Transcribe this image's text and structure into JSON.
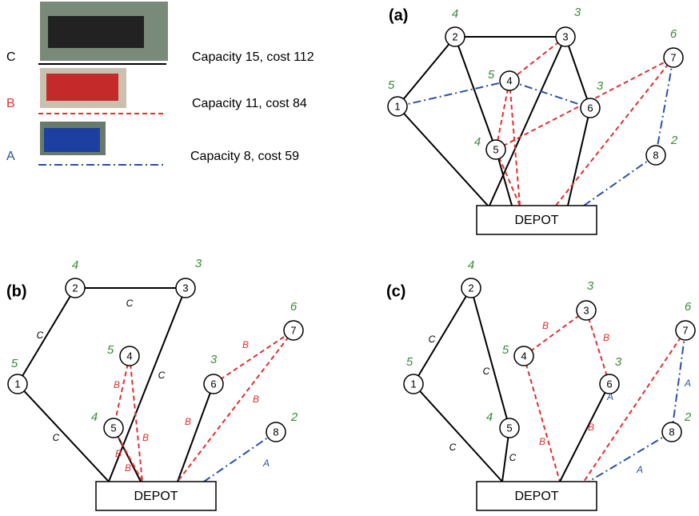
{
  "legend": [
    {
      "letter": "C",
      "text": "Capacity 15, cost 112"
    },
    {
      "letter": "B",
      "text": "Capacity 11, cost 84"
    },
    {
      "letter": "A",
      "text": "Capacity 8, cost 59"
    }
  ],
  "panels": [
    {
      "label": "(a)",
      "depot": "DEPOT",
      "nodes": [
        {
          "label": "1",
          "demand": 5
        },
        {
          "label": "2",
          "demand": 4
        },
        {
          "label": "3",
          "demand": 3
        },
        {
          "label": "4",
          "demand": 5
        },
        {
          "label": "5",
          "demand": 4
        },
        {
          "label": "6",
          "demand": 3
        },
        {
          "label": "7",
          "demand": 6
        },
        {
          "label": "8",
          "demand": 2
        }
      ],
      "edge_labels": []
    },
    {
      "label": "(b)",
      "depot": "DEPOT",
      "nodes": [
        {
          "label": "1",
          "demand": 5
        },
        {
          "label": "2",
          "demand": 4
        },
        {
          "label": "3",
          "demand": 3
        },
        {
          "label": "4",
          "demand": 5
        },
        {
          "label": "5",
          "demand": 4
        },
        {
          "label": "6",
          "demand": 3
        },
        {
          "label": "7",
          "demand": 6
        },
        {
          "label": "8",
          "demand": 2
        }
      ],
      "edge_labels": [
        "C",
        "C",
        "C",
        "C",
        "B",
        "B",
        "B",
        "B",
        "B",
        "B",
        "B",
        "A"
      ]
    },
    {
      "label": "(c)",
      "depot": "DEPOT",
      "nodes": [
        {
          "label": "1",
          "demand": 5
        },
        {
          "label": "2",
          "demand": 4
        },
        {
          "label": "3",
          "demand": 3
        },
        {
          "label": "4",
          "demand": 5
        },
        {
          "label": "5",
          "demand": 4
        },
        {
          "label": "6",
          "demand": 3
        },
        {
          "label": "7",
          "demand": 6
        },
        {
          "label": "8",
          "demand": 2
        }
      ],
      "edge_labels": [
        "C",
        "C",
        "C",
        "C",
        "B",
        "B",
        "B",
        "B",
        "A",
        "A",
        "A"
      ]
    }
  ]
}
